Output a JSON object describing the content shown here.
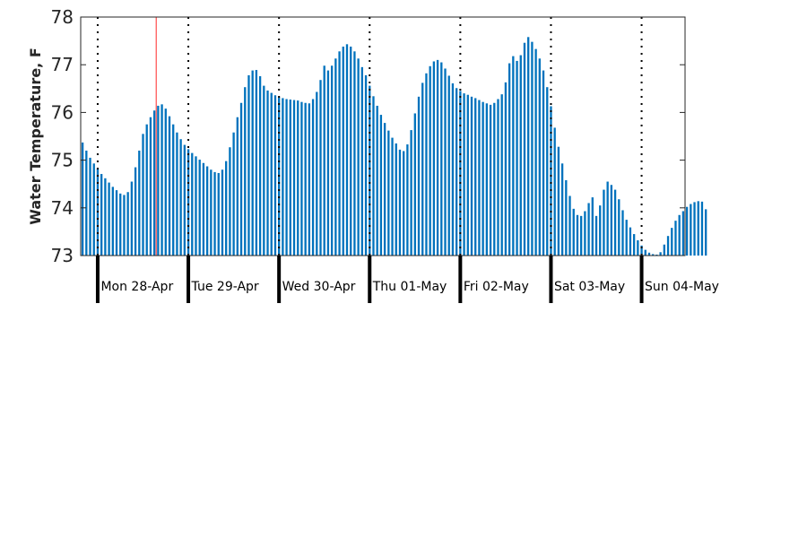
{
  "chart_data": {
    "type": "bar",
    "title": "",
    "xlabel": "",
    "ylabel": "Water Temperature, F",
    "ylim": [
      73,
      78
    ],
    "yticks": [
      "73",
      "74",
      "75",
      "76",
      "77",
      "78"
    ],
    "x_start": "Sun 27-Apr 19:30",
    "sample_interval": "1 hour",
    "day_labels": [
      "Mon 28-Apr",
      "Tue 29-Apr",
      "Wed 30-Apr",
      "Thu 01-May",
      "Fri 02-May",
      "Sat 03-May",
      "Sun 04-May"
    ],
    "marker_time": "Mon 28-Apr 15:30",
    "grid": false,
    "series": [
      {
        "color": "#0072bd",
        "values": [
          75.37,
          75.2,
          75.05,
          74.93,
          74.82,
          74.71,
          74.62,
          74.53,
          74.44,
          74.37,
          74.3,
          74.27,
          74.33,
          74.55,
          74.85,
          75.2,
          75.55,
          75.75,
          75.9,
          76.04,
          76.14,
          76.17,
          76.08,
          75.92,
          75.75,
          75.58,
          75.44,
          75.32,
          75.23,
          75.15,
          75.08,
          75.01,
          74.94,
          74.87,
          74.8,
          74.75,
          74.73,
          74.8,
          74.98,
          75.27,
          75.58,
          75.9,
          76.2,
          76.53,
          76.78,
          76.88,
          76.89,
          76.76,
          76.56,
          76.46,
          76.41,
          76.36,
          76.32,
          76.3,
          76.28,
          76.27,
          76.26,
          76.25,
          76.22,
          76.2,
          76.19,
          76.28,
          76.43,
          76.68,
          76.98,
          76.88,
          76.98,
          77.13,
          77.28,
          77.38,
          77.43,
          77.38,
          77.28,
          77.13,
          76.95,
          76.78,
          76.56,
          76.34,
          76.14,
          75.95,
          75.78,
          75.62,
          75.47,
          75.35,
          75.22,
          75.19,
          75.33,
          75.63,
          75.98,
          76.33,
          76.62,
          76.82,
          76.97,
          77.07,
          77.1,
          77.05,
          76.92,
          76.77,
          76.61,
          76.51,
          76.45,
          76.4,
          76.37,
          76.33,
          76.3,
          76.26,
          76.22,
          76.19,
          76.16,
          76.2,
          76.28,
          76.38,
          76.63,
          77.03,
          77.18,
          77.08,
          77.2,
          77.46,
          77.58,
          77.48,
          77.33,
          77.13,
          76.88,
          76.53,
          76.13,
          75.68,
          75.28,
          74.93,
          74.58,
          74.25,
          73.98,
          73.85,
          73.83,
          73.93,
          74.1,
          74.22,
          73.83,
          74.05,
          74.38,
          74.55,
          74.48,
          74.38,
          74.18,
          73.95,
          73.75,
          73.59,
          73.45,
          73.32,
          73.21,
          73.12,
          73.06,
          73.03,
          73.02,
          73.07,
          73.23,
          73.41,
          73.58,
          73.73,
          73.85,
          73.93,
          74.02,
          74.08,
          74.12,
          74.14,
          74.13,
          73.97
        ]
      }
    ]
  }
}
